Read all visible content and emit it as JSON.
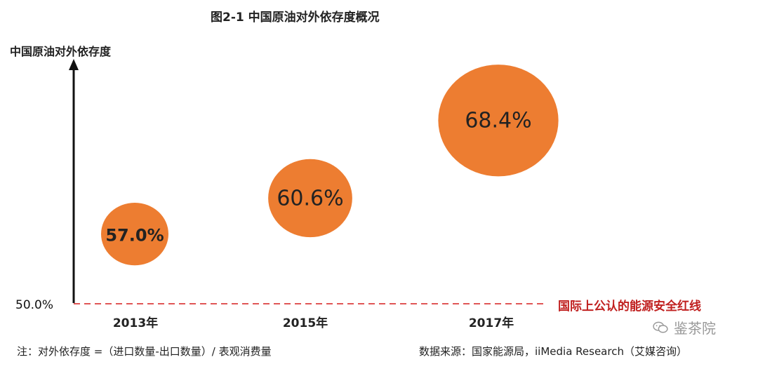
{
  "title": "图2-1 中国原油对外依存度概况",
  "chart_data": {
    "type": "scatter",
    "ylabel": "中国原油对外依存度",
    "baseline": {
      "value": 50.0,
      "label": "50.0%",
      "annotation": "国际上公认的能源安全红线"
    },
    "categories": [
      "2013年",
      "2015年",
      "2017年"
    ],
    "values": [
      57.0,
      60.6,
      68.4
    ],
    "value_labels": [
      "57.0%",
      "60.6%",
      "68.4%"
    ],
    "colors": {
      "bubble": "#ED7D31",
      "baseline": "#E05555",
      "annotation": "#C0201F",
      "axis": "#111111"
    }
  },
  "footnote": "注：对外依存度 =（进口数量-出口数量）/ 表观消费量",
  "source": "数据来源：国家能源局，iiMedia Research（艾媒咨询）",
  "watermark": {
    "icon": "wechat-icon",
    "text": "鉴茶院"
  }
}
